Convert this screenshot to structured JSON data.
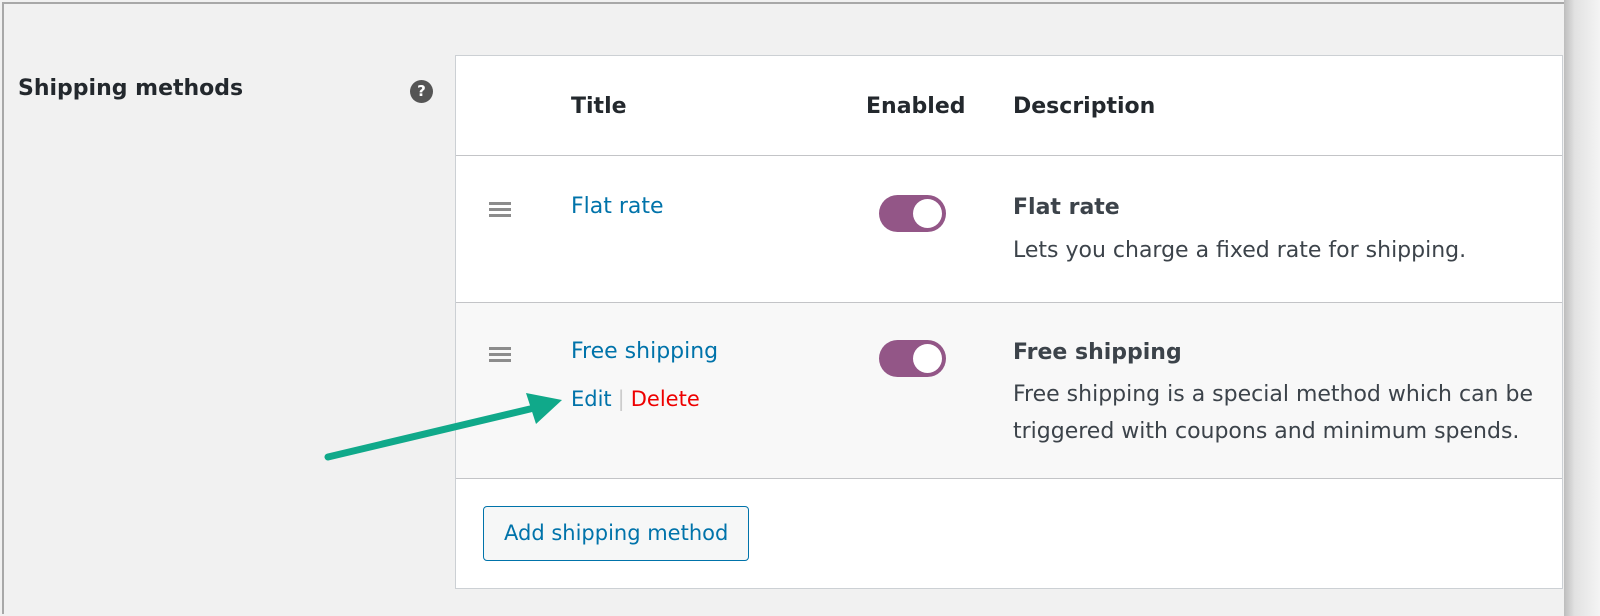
{
  "section_label": "Shipping methods",
  "help_icon": "?",
  "columns": {
    "title": "Title",
    "enabled": "Enabled",
    "description": "Description"
  },
  "methods": [
    {
      "title": "Flat rate",
      "enabled": true,
      "name": "Flat rate",
      "description": "Lets you charge a fixed rate for shipping."
    },
    {
      "title": "Free shipping",
      "enabled": true,
      "name": "Free shipping",
      "description": "Free shipping is a special method which can be triggered with coupons and minimum spends.",
      "actions": {
        "edit": "Edit",
        "separator": "|",
        "delete": "Delete"
      }
    }
  ],
  "add_button": "Add shipping method",
  "colors": {
    "link": "#0073aa",
    "toggle": "#935687",
    "delete": "#e00000",
    "arrow": "#10a98a"
  }
}
